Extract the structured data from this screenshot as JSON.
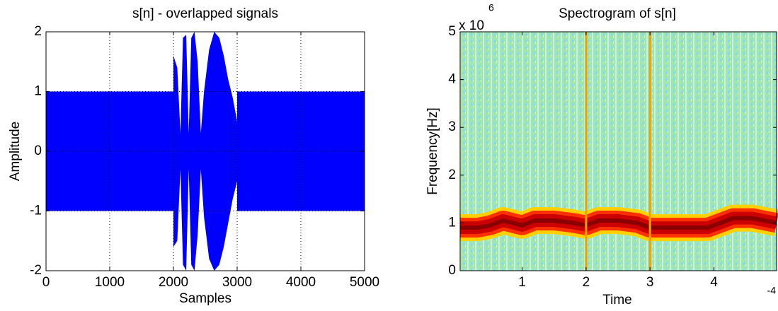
{
  "chart_data": [
    {
      "type": "area",
      "title": "s[n] - overlapped signals",
      "xlabel": "Samples",
      "ylabel": "Amplitude",
      "x": [
        0,
        2000,
        2000,
        2060,
        2110,
        2150,
        2200,
        2240,
        2280,
        2330,
        2380,
        2430,
        2480,
        2560,
        2640,
        2720,
        2790,
        2860,
        2930,
        3000,
        3000,
        5000
      ],
      "series": [
        {
          "color": "#0000ff",
          "values": [
            1,
            1,
            1.6,
            1.4,
            0.3,
            1.9,
            1.95,
            0.3,
            1.9,
            2,
            1.5,
            0.3,
            1.0,
            1.7,
            2,
            1.9,
            1.6,
            1.2,
            0.9,
            0.5,
            1,
            1
          ]
        },
        {
          "color": "#0000ff",
          "values": [
            -1,
            -1,
            -1.6,
            -1.5,
            -0.3,
            -1.9,
            -2,
            -0.3,
            -1.9,
            -2,
            -1.4,
            -0.3,
            -1.1,
            -1.8,
            -2,
            -1.9,
            -1.6,
            -1.2,
            -0.8,
            -0.5,
            -1,
            -1
          ]
        }
      ],
      "xlim": [
        0,
        5000
      ],
      "xticks": [
        0,
        1000,
        2000,
        3000,
        4000,
        5000
      ],
      "ylim": [
        -2,
        2
      ],
      "yticks": [
        -2,
        -1,
        0,
        1,
        2
      ],
      "grid": true
    },
    {
      "type": "line",
      "title": "Spectrogram of s[n]",
      "xlabel": "Time",
      "ylabel": "Frequency[Hz]",
      "y_multiplier": "x 10",
      "y_exponent": "6",
      "x_exponent": "-4",
      "x": [
        0.03,
        0.3,
        0.5,
        0.7,
        1.0,
        1.2,
        1.5,
        1.8,
        2.0,
        2.2,
        2.5,
        2.8,
        3.0,
        3.3,
        3.6,
        3.9,
        4.1,
        4.3,
        4.6,
        4.98
      ],
      "series": [
        {
          "color": "#cc0000",
          "values": [
            0.9,
            0.9,
            0.95,
            1.05,
            0.95,
            1.05,
            1.05,
            1.0,
            0.95,
            1.05,
            1.05,
            1.0,
            0.9,
            0.9,
            0.9,
            0.9,
            1.0,
            1.1,
            1.1,
            1.0
          ]
        }
      ],
      "vlines": [
        2,
        3
      ],
      "vline_color": "#f0a000",
      "xlim": [
        0.03,
        4.98
      ],
      "xticks": [
        1,
        2,
        3,
        4
      ],
      "ylim": [
        0,
        5
      ],
      "yticks": [
        0,
        1,
        2,
        3,
        4,
        5
      ],
      "grid": false
    }
  ]
}
